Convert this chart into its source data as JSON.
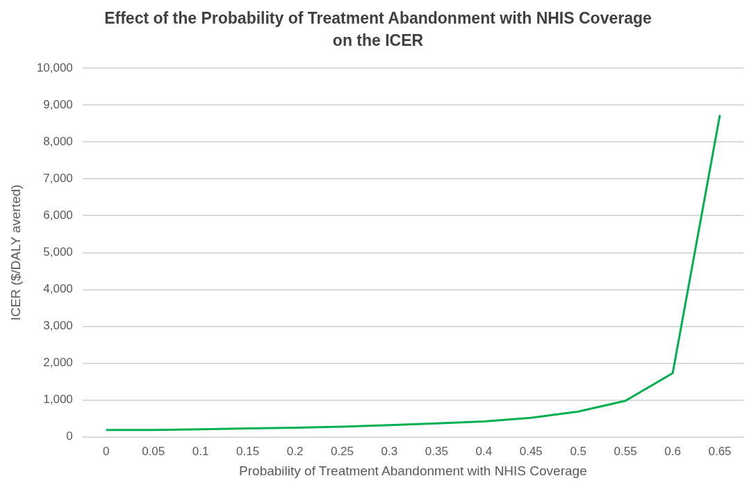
{
  "chart_data": {
    "type": "line",
    "title": "Effect of the Probability of Treatment Abandonment with NHIS Coverage on the ICER",
    "xlabel": "Probability of Treatment Abandonment with NHIS Coverage",
    "ylabel": "ICER ($/DALY averted)",
    "categories": [
      "0",
      "0.05",
      "0.1",
      "0.15",
      "0.2",
      "0.25",
      "0.3",
      "0.35",
      "0.4",
      "0.45",
      "0.5",
      "0.55",
      "0.6",
      "0.65"
    ],
    "series": [
      {
        "color": "#00b050",
        "values": [
          190,
          190,
          210,
          230,
          250,
          280,
          320,
          370,
          420,
          520,
          690,
          980,
          1730,
          8730
        ]
      }
    ],
    "ylim": [
      0,
      10000
    ],
    "yticks": [
      0,
      {
        "value": 1000,
        "label": "1,000"
      },
      {
        "value": 2000,
        "label": "2,000"
      },
      {
        "value": 3000,
        "label": "3,000"
      },
      {
        "value": 4000,
        "label": "4,000"
      },
      {
        "value": 5000,
        "label": "5,000"
      },
      {
        "value": 6000,
        "label": "6,000"
      },
      {
        "value": 7000,
        "label": "7,000"
      },
      {
        "value": 8000,
        "label": "8,000"
      },
      {
        "value": 9000,
        "label": "9,000"
      },
      {
        "value": 10000,
        "label": "10,000"
      }
    ],
    "grid": "y",
    "legend": false,
    "marker": "none",
    "line_style": "solid"
  }
}
